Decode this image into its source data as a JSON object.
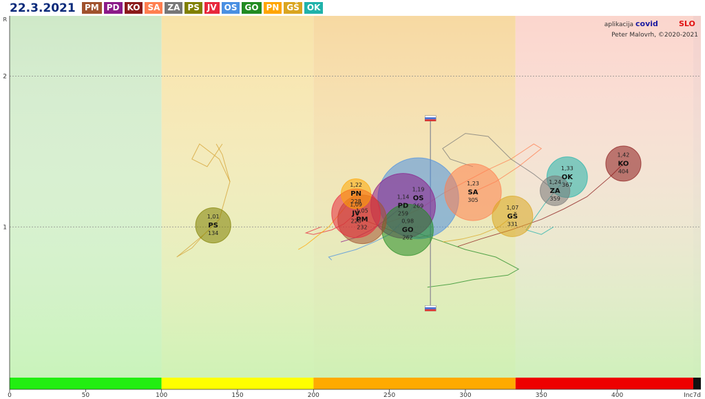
{
  "date": "22.3.2021",
  "credits": {
    "prefix": "aplikacija",
    "brand1": "covid",
    "brand2": "SLO",
    "author": "Peter Malovrh, ©2020-2021"
  },
  "chart_data": {
    "type": "scatter",
    "xlabel": "Inc7d",
    "ylabel": "R",
    "xlim": [
      0,
      455
    ],
    "ylim": [
      0,
      2.4
    ],
    "xticks": [
      0,
      50,
      100,
      150,
      200,
      250,
      300,
      350,
      400
    ],
    "yticks": [
      1,
      2
    ],
    "zones": [
      {
        "from": 0,
        "to": 100,
        "bg": "#cfe9c8",
        "bar": "#22ee11"
      },
      {
        "from": 100,
        "to": 200,
        "bg": "#f8e3a8",
        "bar": "#ffff00"
      },
      {
        "from": 200,
        "to": 333,
        "bg": "#f7d9a2",
        "bar": "#ffaa00"
      },
      {
        "from": 333,
        "to": 450,
        "bg": "#fbd6cd",
        "bar": "#ee0000"
      },
      {
        "from": 450,
        "to": 455,
        "bg": "#f3d1cc",
        "bar": "#111111"
      }
    ],
    "range_bar": {
      "x": 277,
      "low": 0.46,
      "high": 1.72
    },
    "series": [
      {
        "name": "PM",
        "color": "#a0522d",
        "x": 232,
        "y": 1.05,
        "r_label": "1,05",
        "inc_label": "232",
        "size": 14
      },
      {
        "name": "PD",
        "color": "#8b1a89",
        "x": 259,
        "y": 1.14,
        "r_label": "1,14",
        "inc_label": "259",
        "size": 20
      },
      {
        "name": "KO",
        "color": "#8b1a1a",
        "x": 404,
        "y": 1.42,
        "r_label": "1,42",
        "inc_label": "404",
        "size": 9
      },
      {
        "name": "SA",
        "color": "#ff7f50",
        "x": 305,
        "y": 1.23,
        "r_label": "1,23",
        "inc_label": "305",
        "size": 17
      },
      {
        "name": "ZA",
        "color": "#777777",
        "x": 359,
        "y": 1.24,
        "r_label": "1,24",
        "inc_label": "359",
        "size": 7
      },
      {
        "name": "PS",
        "color": "#808000",
        "x": 134,
        "y": 1.01,
        "r_label": "1,01",
        "inc_label": "134",
        "size": 9
      },
      {
        "name": "JV",
        "color": "#e8283c",
        "x": 228,
        "y": 1.09,
        "r_label": "1,09",
        "inc_label": "228",
        "size": 14
      },
      {
        "name": "OS",
        "color": "#4a90e2",
        "x": 269,
        "y": 1.19,
        "r_label": "1,19",
        "inc_label": "269",
        "size": 26
      },
      {
        "name": "GO",
        "color": "#228b22",
        "x": 262,
        "y": 0.98,
        "r_label": "0,98",
        "inc_label": "262",
        "size": 15
      },
      {
        "name": "PN",
        "color": "#ffa500",
        "x": 228,
        "y": 1.22,
        "r_label": "1,22",
        "inc_label": "228",
        "size": 7
      },
      {
        "name": "GŠ",
        "color": "#daa520",
        "x": 331,
        "y": 1.07,
        "r_label": "1,07",
        "inc_label": "331",
        "size": 11
      },
      {
        "name": "OK",
        "color": "#20b2aa",
        "x": 367,
        "y": 1.33,
        "r_label": "1,33",
        "inc_label": "367",
        "size": 11
      }
    ],
    "trails": [
      {
        "name": "PS",
        "color": "#d4a030",
        "x": [
          134,
          128,
          122,
          116,
          110,
          120,
          128,
          138,
          145,
          140,
          136
        ],
        "y": [
          1.01,
          0.95,
          0.9,
          0.85,
          0.8,
          0.86,
          0.95,
          1.05,
          1.3,
          1.48,
          1.55
        ]
      },
      {
        "name": "PS2",
        "color": "#d4a030",
        "x": [
          145,
          138,
          125,
          120,
          130,
          140
        ],
        "y": [
          1.3,
          1.45,
          1.55,
          1.45,
          1.4,
          1.55
        ]
      },
      {
        "name": "OS",
        "color": "#4a90e2",
        "x": [
          269,
          260,
          250,
          240,
          228,
          210,
          212
        ],
        "y": [
          1.19,
          1.05,
          0.95,
          0.9,
          0.85,
          0.8,
          0.78
        ]
      },
      {
        "name": "GO",
        "color": "#228b22",
        "x": [
          262,
          280,
          300,
          320,
          335,
          328,
          305,
          290,
          275
        ],
        "y": [
          0.98,
          0.92,
          0.85,
          0.8,
          0.72,
          0.68,
          0.65,
          0.62,
          0.6
        ]
      },
      {
        "name": "SA",
        "color": "#ff7f50",
        "x": [
          305,
          320,
          335,
          350,
          345,
          330,
          315,
          300,
          285,
          270,
          255,
          240
        ],
        "y": [
          1.23,
          1.3,
          1.4,
          1.52,
          1.55,
          1.45,
          1.38,
          1.3,
          1.22,
          1.12,
          1.05,
          1.0
        ]
      },
      {
        "name": "KO",
        "color": "#8b1a1a",
        "x": [
          404,
          395,
          380,
          365,
          350,
          330,
          310,
          295
        ],
        "y": [
          1.42,
          1.33,
          1.2,
          1.12,
          1.05,
          0.98,
          0.92,
          0.87
        ]
      },
      {
        "name": "OK",
        "color": "#20b2aa",
        "x": [
          367,
          360,
          352,
          345,
          340,
          350,
          358
        ],
        "y": [
          1.33,
          1.25,
          1.15,
          1.05,
          0.98,
          0.95,
          1.0
        ]
      },
      {
        "name": "ZA",
        "color": "#777777",
        "x": [
          359,
          345,
          330,
          315,
          300,
          285,
          290,
          305
        ],
        "y": [
          1.24,
          1.35,
          1.45,
          1.6,
          1.62,
          1.52,
          1.45,
          1.4
        ]
      },
      {
        "name": "JV",
        "color": "#e8283c",
        "x": [
          228,
          220,
          212,
          200,
          195,
          205
        ],
        "y": [
          1.09,
          1.02,
          0.98,
          0.95,
          0.96,
          1.0
        ]
      },
      {
        "name": "PN",
        "color": "#ffa500",
        "x": [
          228,
          220,
          210,
          200,
          195,
          190
        ],
        "y": [
          1.22,
          1.12,
          1.0,
          0.92,
          0.88,
          0.85
        ]
      },
      {
        "name": "GŠ",
        "color": "#daa520",
        "x": [
          331,
          322,
          310,
          298,
          285
        ],
        "y": [
          1.07,
          1.0,
          0.95,
          0.92,
          0.9
        ]
      },
      {
        "name": "PM",
        "color": "#a0522d",
        "x": [
          232,
          245,
          258,
          270,
          278
        ],
        "y": [
          1.05,
          1.0,
          0.95,
          0.93,
          0.95
        ]
      },
      {
        "name": "PD",
        "color": "#8b1a89",
        "x": [
          259,
          248,
          238,
          228,
          218
        ],
        "y": [
          1.14,
          1.05,
          0.98,
          0.93,
          0.9
        ]
      }
    ]
  }
}
